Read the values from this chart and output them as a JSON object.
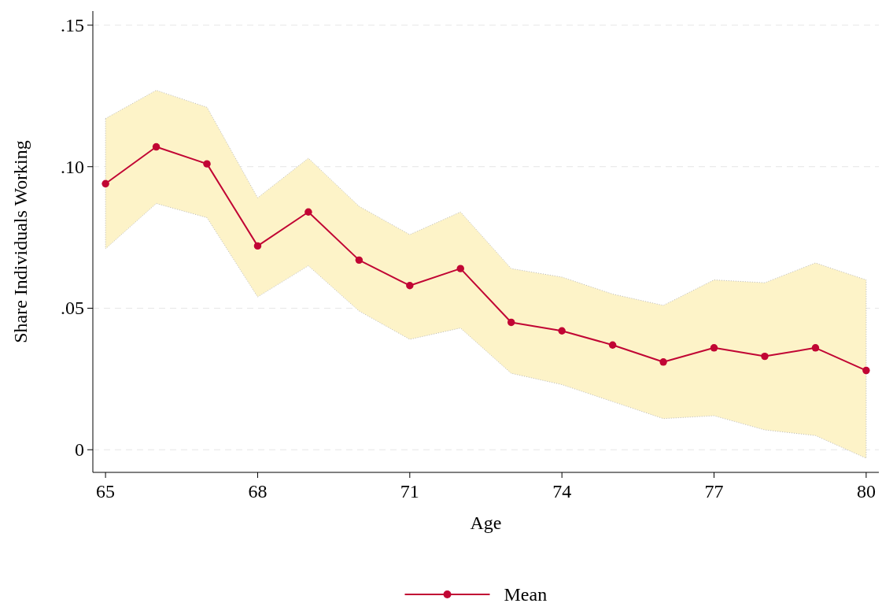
{
  "chart_data": {
    "type": "line",
    "xlabel": "Age",
    "ylabel": "Share Individuals Working",
    "x": [
      65,
      66,
      67,
      68,
      69,
      70,
      71,
      72,
      73,
      74,
      75,
      76,
      77,
      78,
      79,
      80
    ],
    "series": [
      {
        "name": "Mean",
        "color": "#c10534",
        "values": [
          0.094,
          0.107,
          0.101,
          0.072,
          0.084,
          0.067,
          0.058,
          0.064,
          0.045,
          0.042,
          0.037,
          0.031,
          0.036,
          0.033,
          0.036,
          0.028
        ],
        "upper": [
          0.117,
          0.127,
          0.121,
          0.089,
          0.103,
          0.086,
          0.076,
          0.084,
          0.064,
          0.061,
          0.055,
          0.051,
          0.06,
          0.059,
          0.066,
          0.06
        ],
        "lower": [
          0.071,
          0.087,
          0.082,
          0.054,
          0.065,
          0.049,
          0.039,
          0.043,
          0.027,
          0.023,
          0.017,
          0.011,
          0.012,
          0.007,
          0.005,
          -0.003
        ]
      }
    ],
    "xlim": [
      64.75,
      80.25
    ],
    "ylim": [
      -0.008,
      0.155
    ],
    "xticks": [
      65,
      68,
      71,
      74,
      77,
      80
    ],
    "yticks": [
      {
        "value": 0,
        "label": "0"
      },
      {
        "value": 0.05,
        "label": ".05"
      },
      {
        "value": 0.1,
        "label": ".10"
      },
      {
        "value": 0.15,
        "label": ".15"
      }
    ],
    "grid": "y",
    "legend": "bottom",
    "marker": "circle",
    "line_style": "solid"
  }
}
